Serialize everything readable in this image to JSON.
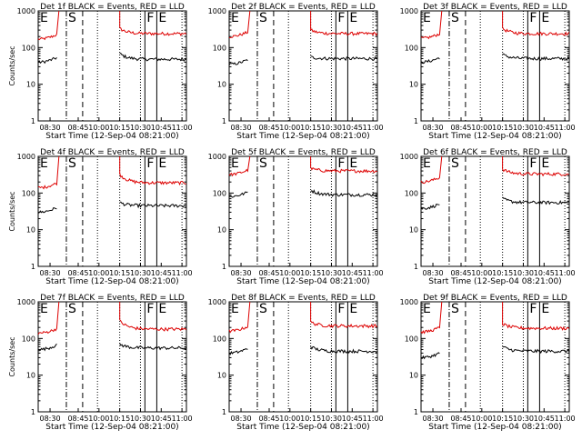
{
  "chart_data": {
    "type": "line",
    "layout": "3x3 grid",
    "y_scale": "log",
    "ylim": [
      1,
      1000
    ],
    "y_ticks": [
      "1",
      "10",
      "100",
      "1000"
    ],
    "x_tick_labels": [
      "08:30",
      "08:45",
      "10:00",
      "10:15",
      "10:30",
      "10:45",
      "11:00"
    ],
    "xlabel": "Start Time (12-Sep-04 08:21:00)",
    "ylabel": "Counts/sec",
    "series_colors": {
      "events": "#000000",
      "lld": "#dd0000"
    },
    "marker_letters": [
      "E",
      "S",
      "F",
      "E"
    ],
    "panels": [
      {
        "title": "Det 1f BLACK = Events, RED = LLD",
        "events": [
          40,
          68,
          48
        ],
        "lld": [
          170,
          330,
          240
        ]
      },
      {
        "title": "Det 2f BLACK = Events, RED = LLD",
        "events": [
          35,
          55,
          50
        ],
        "lld": [
          200,
          300,
          240
        ]
      },
      {
        "title": "Det 3f BLACK = Events, RED = LLD",
        "events": [
          40,
          65,
          50
        ],
        "lld": [
          180,
          330,
          240
        ]
      },
      {
        "title": "Det 4f BLACK = Events, RED = LLD",
        "events": [
          30,
          55,
          45
        ],
        "lld": [
          140,
          320,
          190
        ]
      },
      {
        "title": "Det 5f BLACK = Events, RED = LLD",
        "events": [
          80,
          120,
          90
        ],
        "lld": [
          320,
          470,
          400
        ]
      },
      {
        "title": "Det 6f BLACK = Events, RED = LLD",
        "events": [
          38,
          70,
          55
        ],
        "lld": [
          200,
          450,
          330
        ]
      },
      {
        "title": "Det 7f BLACK = Events, RED = LLD",
        "events": [
          50,
          70,
          55
        ],
        "lld": [
          140,
          300,
          180
        ]
      },
      {
        "title": "Det 8f BLACK = Events, RED = LLD",
        "events": [
          40,
          60,
          45
        ],
        "lld": [
          160,
          280,
          220
        ]
      },
      {
        "title": "Det 9f BLACK = Events, RED = LLD",
        "events": [
          30,
          60,
          45
        ],
        "lld": [
          150,
          250,
          190
        ]
      }
    ]
  }
}
